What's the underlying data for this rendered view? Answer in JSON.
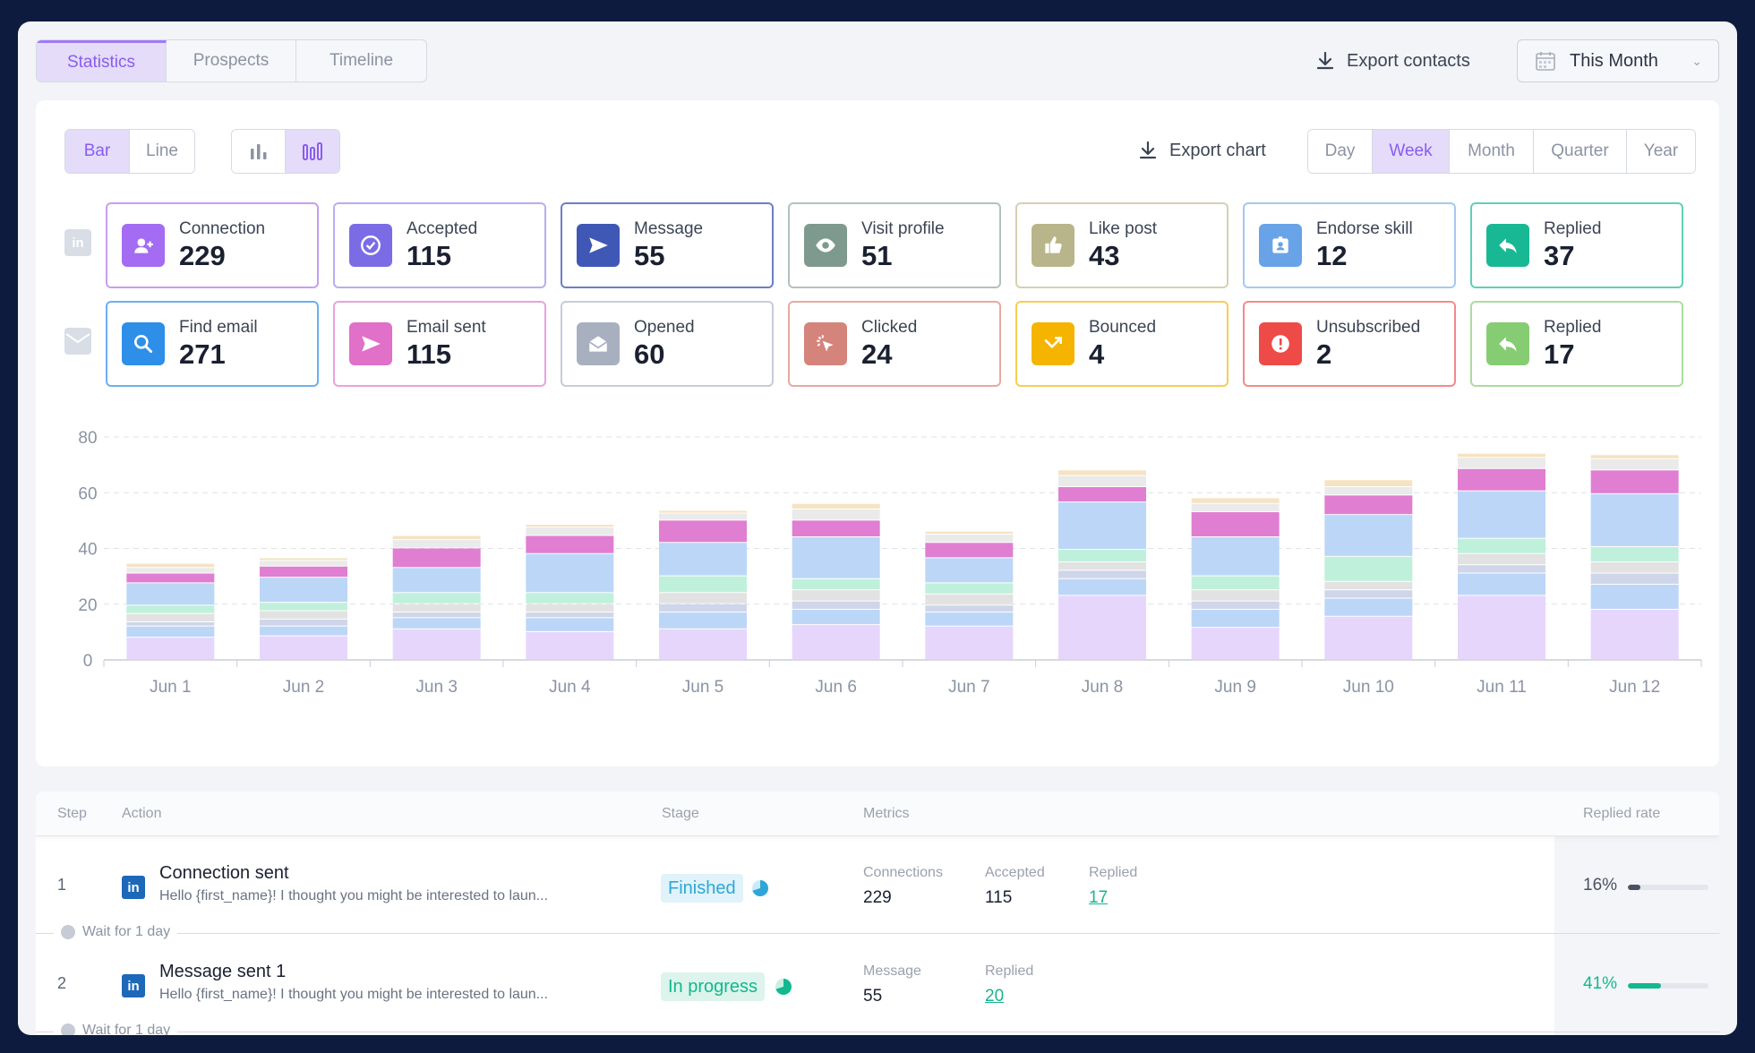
{
  "tabs": [
    "Statistics",
    "Prospects",
    "Timeline"
  ],
  "active_tab": 0,
  "export_contacts": "Export contacts",
  "date_range": "This Month",
  "chart_type_options": [
    "Bar",
    "Line"
  ],
  "export_chart": "Export chart",
  "period_options": [
    "Day",
    "Week",
    "Month",
    "Quarter",
    "Year"
  ],
  "active_period": 1,
  "linkedin_metrics": [
    {
      "label": "Connection",
      "value": "229",
      "icon": "add-person-icon",
      "color": "#a36cf2",
      "border": "#c79ef2"
    },
    {
      "label": "Accepted",
      "value": "115",
      "icon": "check-circle-icon",
      "color": "#7b6ce6",
      "border": "#b8aef0"
    },
    {
      "label": "Message",
      "value": "55",
      "icon": "send-icon",
      "color": "#3f58b5",
      "border": "#6a7fc7"
    },
    {
      "label": "Visit profile",
      "value": "51",
      "icon": "eye-icon",
      "color": "#7e9a8f",
      "border": "#b3c2bc"
    },
    {
      "label": "Like post",
      "value": "43",
      "icon": "thumbs-up-icon",
      "color": "#b9b58a",
      "border": "#d4d1b3"
    },
    {
      "label": "Endorse skill",
      "value": "12",
      "icon": "badge-icon",
      "color": "#68a3e8",
      "border": "#a6c8ef"
    },
    {
      "label": "Replied",
      "value": "37",
      "icon": "reply-icon",
      "color": "#19b894",
      "border": "#5fd1b6"
    }
  ],
  "email_metrics": [
    {
      "label": "Find email",
      "value": "271",
      "icon": "search-icon",
      "color": "#2d8fe8",
      "border": "#6ab0f0"
    },
    {
      "label": "Email sent",
      "value": "115",
      "icon": "send-icon",
      "color": "#e070c8",
      "border": "#e9a3dc"
    },
    {
      "label": "Opened",
      "value": "60",
      "icon": "open-envelope-icon",
      "color": "#a8b0c0",
      "border": "#c6ccd7"
    },
    {
      "label": "Clicked",
      "value": "24",
      "icon": "cursor-click-icon",
      "color": "#d4847a",
      "border": "#e6aaa2"
    },
    {
      "label": "Bounced",
      "value": "4",
      "icon": "bounce-icon",
      "color": "#f5b400",
      "border": "#f7ce55"
    },
    {
      "label": "Unsubscribed",
      "value": "2",
      "icon": "alert-icon",
      "color": "#ee4a48",
      "border": "#f28b89"
    },
    {
      "label": "Replied",
      "value": "17",
      "icon": "reply-icon",
      "color": "#86cc73",
      "border": "#acdc9e"
    }
  ],
  "chart_data": {
    "type": "bar",
    "stacked": true,
    "categories": [
      "Jun 1",
      "Jun 2",
      "Jun 3",
      "Jun 4",
      "Jun 5",
      "Jun 6",
      "Jun 7",
      "Jun 8",
      "Jun 9",
      "Jun 10",
      "Jun 11",
      "Jun 12"
    ],
    "ylim": [
      0,
      80
    ],
    "yticks": [
      0,
      20,
      40,
      60,
      80
    ],
    "grid": true,
    "series": [
      {
        "color": "#e6d6fc",
        "values": [
          8,
          8.5,
          11,
          10,
          11,
          12.5,
          12,
          23,
          11.5,
          15.5,
          23,
          18
        ]
      },
      {
        "color": "#bcd6f7",
        "values": [
          4,
          3.5,
          4,
          5,
          6,
          5.5,
          5,
          6,
          6.5,
          6.5,
          8,
          9
        ]
      },
      {
        "color": "#cfd6ea",
        "values": [
          1.5,
          2.5,
          2,
          2,
          3,
          3,
          2.5,
          3,
          3,
          3,
          3,
          4
        ]
      },
      {
        "color": "#e2e2e2",
        "values": [
          3,
          3,
          3,
          3,
          4,
          4,
          4,
          3,
          4,
          3,
          4,
          4
        ]
      },
      {
        "color": "#bff0dc",
        "values": [
          3,
          3,
          4,
          4,
          6,
          4,
          4,
          4.5,
          5,
          9,
          5.5,
          5.5
        ]
      },
      {
        "color": "#bcd6f7",
        "values": [
          8,
          9,
          9,
          14,
          12,
          15,
          9,
          17,
          14,
          15,
          17,
          19
        ]
      },
      {
        "color": "#e07ed2",
        "values": [
          3.5,
          4,
          7,
          6.5,
          8,
          6,
          5.5,
          5.5,
          9,
          7,
          8,
          8.5
        ]
      },
      {
        "color": "#eaeaea",
        "values": [
          2,
          2,
          3,
          3,
          2.5,
          4,
          3,
          4,
          3,
          3,
          4,
          4
        ]
      },
      {
        "color": "#f5e3c2",
        "values": [
          1.5,
          1,
          1.5,
          1,
          1,
          2,
          1,
          2,
          2,
          2.5,
          1.5,
          1.5
        ]
      }
    ]
  },
  "table": {
    "headers": {
      "step": "Step",
      "action": "Action",
      "stage": "Stage",
      "metrics": "Metrics",
      "rate": "Replied rate"
    },
    "rows": [
      {
        "step": "1",
        "title": "Connection sent",
        "subtitle": "Hello {first_name}! I thought you might be interested to laun...",
        "stage": "Finished",
        "stage_color": "#2ea7d6",
        "stage_bg": "#e0f3fa",
        "metrics": [
          {
            "label": "Connections",
            "value": "229",
            "link": false
          },
          {
            "label": "Accepted",
            "value": "115",
            "link": false
          },
          {
            "label": "Replied",
            "value": "17",
            "link": true
          }
        ],
        "rate": "16%",
        "rate_value": 0.16,
        "rate_color": "#4a5160",
        "wait": "Wait for 1 day"
      },
      {
        "step": "2",
        "title": "Message sent 1",
        "subtitle": "Hello {first_name}! I thought you might be interested to laun...",
        "stage": "In progress",
        "stage_color": "#12b88f",
        "stage_bg": "#dcf4ec",
        "metrics": [
          {
            "label": "Message",
            "value": "55",
            "link": false
          },
          {
            "label": "Replied",
            "value": "20",
            "link": true
          }
        ],
        "rate": "41%",
        "rate_value": 0.41,
        "rate_color": "#12b88f",
        "wait": "Wait for 1 day"
      }
    ]
  }
}
